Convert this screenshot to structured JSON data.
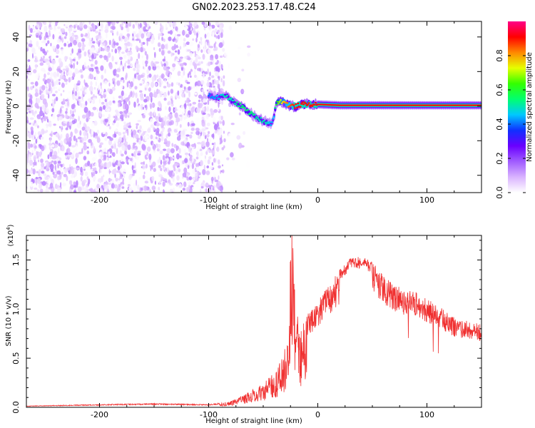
{
  "title": "GN02.2023.253.17.48.C24",
  "chart_data": [
    {
      "type": "heatmap",
      "xlabel": "Height of straight line (km)",
      "ylabel": "Frequency (Hz)",
      "xlim": [
        -267,
        150
      ],
      "ylim": [
        -50,
        49
      ],
      "x_ticks": [
        -200,
        -100,
        0,
        100
      ],
      "x_tick_labels": [
        "-200",
        "-100",
        "0",
        "100"
      ],
      "y_ticks": [
        -40,
        -20,
        0,
        20,
        40
      ],
      "y_tick_labels": [
        "-40",
        "-20",
        "0",
        "20",
        "40"
      ],
      "colorbar": {
        "label": "Normalized spectral amplitude",
        "range": [
          0,
          1
        ],
        "ticks": [
          0.0,
          0.2,
          0.4,
          0.6,
          0.8
        ],
        "tick_labels": [
          "0.0",
          "0.2",
          "0.4",
          "0.6",
          "0.8"
        ],
        "colormap": [
          "#ffffff",
          "#d9b3ff",
          "#a05cff",
          "#6a00ff",
          "#1030ff",
          "#00c8ff",
          "#00ff70",
          "#33ff00",
          "#e6ff00",
          "#ff8800",
          "#ff0000",
          "#ff0088"
        ]
      },
      "noise_region_x": [
        -267,
        -85
      ],
      "noise_amplitude": 0.15,
      "signal_track": {
        "x": [
          -100,
          -92,
          -85,
          -78,
          -70,
          -62,
          -55,
          -48,
          -43,
          -40,
          -38,
          -35,
          -30,
          -25,
          -20,
          -15,
          -10,
          -5,
          0,
          20,
          50,
          80,
          110,
          150
        ],
        "freq": [
          6,
          5,
          6,
          3,
          0,
          -4,
          -7,
          -9,
          -10,
          -6,
          2,
          3,
          2,
          0,
          0,
          1,
          1,
          1,
          1,
          0.5,
          0.5,
          0.5,
          0.5,
          0.5
        ],
        "amplitude": [
          0.4,
          0.45,
          0.5,
          0.5,
          0.55,
          0.55,
          0.5,
          0.5,
          0.45,
          0.45,
          0.6,
          0.7,
          0.8,
          0.85,
          0.9,
          0.9,
          0.9,
          0.9,
          0.9,
          0.9,
          0.9,
          0.9,
          0.9,
          0.9
        ]
      }
    },
    {
      "type": "line",
      "xlabel": "Height of straight line (km)",
      "ylabel": "SNR (10 * v/v)",
      "y_multiplier_label": "(x10",
      "y_multiplier_exp": "4",
      "xlim": [
        -267,
        150
      ],
      "ylim": [
        0,
        17500
      ],
      "x_ticks": [
        -200,
        -100,
        0,
        100
      ],
      "x_tick_labels": [
        "-200",
        "-100",
        "0",
        "100"
      ],
      "y_ticks": [
        0,
        5000,
        10000,
        15000
      ],
      "y_tick_labels": [
        "0.0",
        "0.5",
        "1.0",
        "1.5"
      ],
      "color": "#f03030",
      "series": [
        {
          "x": [
            -267,
            -200,
            -150,
            -100,
            -80,
            -70,
            -60,
            -50,
            -40,
            -30,
            -25,
            -22,
            -20,
            -15,
            -10,
            0,
            10,
            20,
            30,
            40,
            50,
            60,
            70,
            80,
            90,
            100,
            110,
            120,
            130,
            140,
            150
          ],
          "values": [
            150,
            300,
            400,
            300,
            600,
            1200,
            1800,
            2500,
            3500,
            6000,
            9000,
            16500,
            10000,
            8000,
            9500,
            11000,
            12500,
            14000,
            15200,
            15400,
            14800,
            13500,
            12500,
            12000,
            11800,
            11000,
            10500,
            9500,
            9000,
            8800,
            8500
          ]
        }
      ]
    }
  ]
}
